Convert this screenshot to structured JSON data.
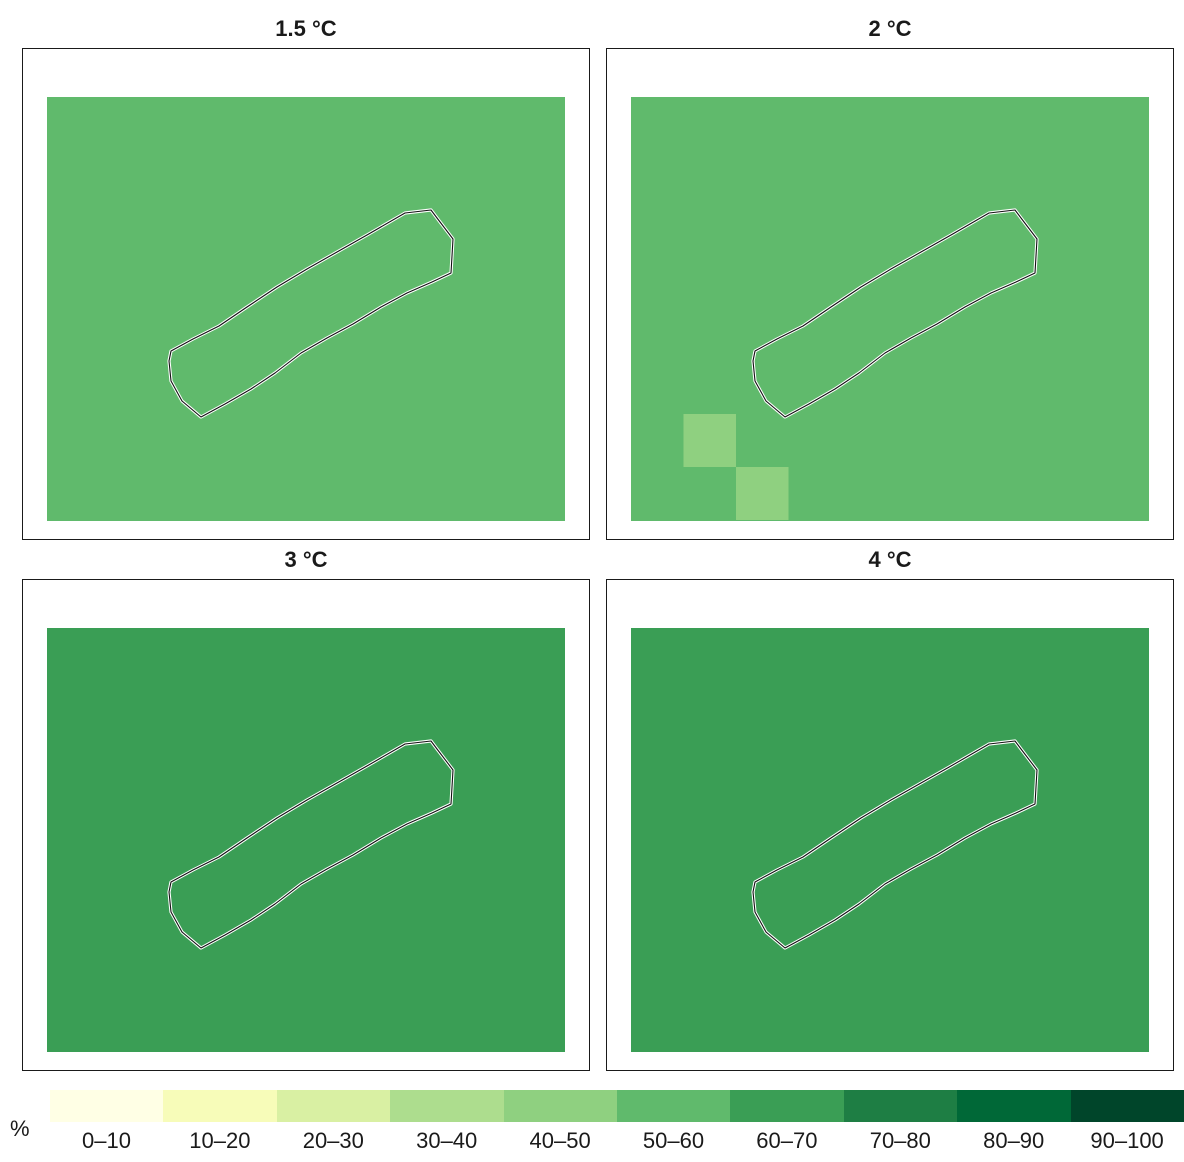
{
  "panels": [
    {
      "title": "1.5 °C",
      "class": "50–60",
      "cells": []
    },
    {
      "title": "2 °C",
      "class": "50–60",
      "cells": [
        {
          "col": 1,
          "row": 6,
          "class": "40–50"
        },
        {
          "col": 2,
          "row": 7,
          "class": "40–50"
        }
      ]
    },
    {
      "title": "3 °C",
      "class": "60–70",
      "cells": []
    },
    {
      "title": "4 °C",
      "class": "60–70",
      "cells": []
    }
  ],
  "legend": {
    "unit": "%",
    "classes": [
      {
        "label": "0–10",
        "color": "#ffffe5"
      },
      {
        "label": "10–20",
        "color": "#f7fcb9"
      },
      {
        "label": "20–30",
        "color": "#d9f0a3"
      },
      {
        "label": "30–40",
        "color": "#addd8e"
      },
      {
        "label": "40–50",
        "color": "#8fd080"
      },
      {
        "label": "50–60",
        "color": "#60ba6c"
      },
      {
        "label": "60–70",
        "color": "#3a9e55"
      },
      {
        "label": "70–80",
        "color": "#1e7e44"
      },
      {
        "label": "80–90",
        "color": "#006837"
      },
      {
        "label": "90–100",
        "color": "#00452a"
      }
    ]
  }
}
